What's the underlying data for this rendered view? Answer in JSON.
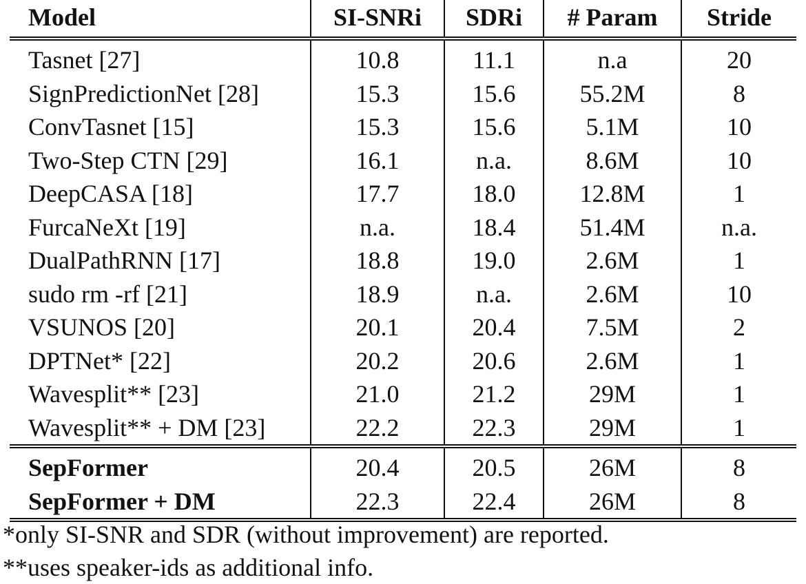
{
  "table": {
    "headers": [
      "Model",
      "SI-SNRi",
      "SDRi",
      "# Param",
      "Stride"
    ],
    "prior_rows": [
      [
        "Tasnet [27]",
        "10.8",
        "11.1",
        "n.a",
        "20"
      ],
      [
        "SignPredictionNet [28]",
        "15.3",
        "15.6",
        "55.2M",
        "8"
      ],
      [
        "ConvTasnet [15]",
        "15.3",
        "15.6",
        "5.1M",
        "10"
      ],
      [
        "Two-Step CTN [29]",
        "16.1",
        "n.a.",
        "8.6M",
        "10"
      ],
      [
        "DeepCASA [18]",
        "17.7",
        "18.0",
        "12.8M",
        "1"
      ],
      [
        "FurcaNeXt [19]",
        "n.a.",
        "18.4",
        "51.4M",
        "n.a."
      ],
      [
        "DualPathRNN [17]",
        "18.8",
        "19.0",
        "2.6M",
        "1"
      ],
      [
        "sudo rm -rf [21]",
        "18.9",
        "n.a.",
        "2.6M",
        "10"
      ],
      [
        "VSUNOS [20]",
        "20.1",
        "20.4",
        "7.5M",
        "2"
      ],
      [
        "DPTNet* [22]",
        "20.2",
        "20.6",
        "2.6M",
        "1"
      ],
      [
        "Wavesplit** [23]",
        "21.0",
        "21.2",
        "29M",
        "1"
      ],
      [
        "Wavesplit** + DM [23]",
        "22.2",
        "22.3",
        "29M",
        "1"
      ]
    ],
    "ours_rows": [
      [
        "SepFormer",
        "20.4",
        "20.5",
        "26M",
        "8"
      ],
      [
        "SepFormer + DM",
        "22.3",
        "22.4",
        "26M",
        "8"
      ]
    ]
  },
  "footnotes": [
    "*only SI-SNR and SDR (without improvement) are reported.",
    "**uses speaker-ids as additional info."
  ]
}
